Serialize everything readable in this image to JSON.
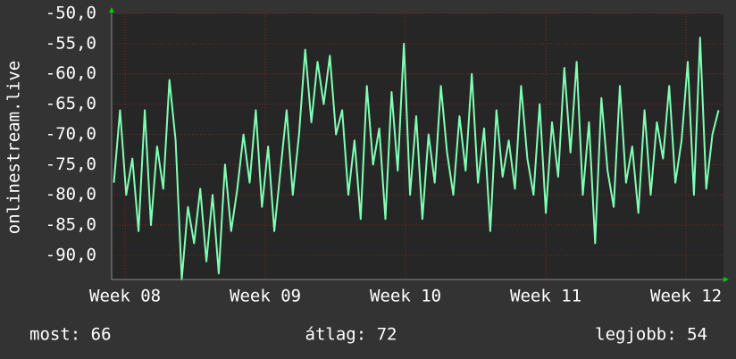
{
  "chart_data": {
    "type": "line",
    "ylabel": "onlinestream.live",
    "x": [
      7.92,
      7.964,
      8.008,
      8.052,
      8.096,
      8.14,
      8.184,
      8.228,
      8.272,
      8.316,
      8.36,
      8.404,
      8.448,
      8.492,
      8.536,
      8.58,
      8.624,
      8.668,
      8.712,
      8.756,
      8.8,
      8.844,
      8.888,
      8.932,
      8.976,
      9.02,
      9.064,
      9.108,
      9.152,
      9.196,
      9.24,
      9.284,
      9.328,
      9.372,
      9.416,
      9.46,
      9.504,
      9.548,
      9.592,
      9.636,
      9.68,
      9.724,
      9.768,
      9.812,
      9.856,
      9.9,
      9.944,
      9.988,
      10.032,
      10.076,
      10.12,
      10.164,
      10.208,
      10.252,
      10.296,
      10.34,
      10.384,
      10.428,
      10.472,
      10.516,
      10.56,
      10.604,
      10.648,
      10.692,
      10.736,
      10.78,
      10.824,
      10.868,
      10.912,
      10.956,
      11.0,
      11.044,
      11.088,
      11.132,
      11.176,
      11.22,
      11.264,
      11.308,
      11.352,
      11.396,
      11.44,
      11.484,
      11.528,
      11.572,
      11.616,
      11.66,
      11.704,
      11.748,
      11.792,
      11.836,
      11.88,
      11.924,
      11.968,
      12.012,
      12.056,
      12.1,
      12.144,
      12.188,
      12.232
    ],
    "series": [
      {
        "color": "#80ffb4",
        "values": [
          -78,
          -66,
          -80,
          -74,
          -86,
          -66,
          -85,
          -72,
          -79,
          -61,
          -71,
          -94,
          -82,
          -88,
          -79,
          -91,
          -80,
          -93,
          -75,
          -86,
          -79,
          -70,
          -78,
          -66,
          -82,
          -72,
          -86,
          -76,
          -66,
          -80,
          -70,
          -56,
          -68,
          -58,
          -65,
          -57,
          -70,
          -66,
          -80,
          -71,
          -84,
          -62,
          -75,
          -69,
          -84,
          -63,
          -76,
          -55,
          -80,
          -67,
          -84,
          -70,
          -78,
          -62,
          -73,
          -80,
          -67,
          -76,
          -60,
          -78,
          -69,
          -86,
          -66,
          -77,
          -71,
          -79,
          -62,
          -74,
          -80,
          -65,
          -83,
          -68,
          -77,
          -59,
          -73,
          -58,
          -80,
          -68,
          -88,
          -64,
          -76,
          -82,
          -62,
          -78,
          -72,
          -83,
          -66,
          -80,
          -68,
          -74,
          -62,
          -78,
          -71,
          -58,
          -80,
          -54,
          -79,
          -70,
          -66
        ]
      }
    ],
    "xlim": [
      7.904,
      12.267
    ],
    "xticks": [
      {
        "value": 8,
        "label": "Week 08"
      },
      {
        "value": 9,
        "label": "Week 09"
      },
      {
        "value": 10,
        "label": "Week 10"
      },
      {
        "value": 11,
        "label": "Week 11"
      },
      {
        "value": 12,
        "label": "Week 12"
      }
    ],
    "ylim": [
      -94,
      -50
    ],
    "yticks": [
      {
        "value": -50,
        "label": "-50,0"
      },
      {
        "value": -55,
        "label": "-55,0"
      },
      {
        "value": -60,
        "label": "-60,0"
      },
      {
        "value": -65,
        "label": "-65,0"
      },
      {
        "value": -70,
        "label": "-70,0"
      },
      {
        "value": -75,
        "label": "-75,0"
      },
      {
        "value": -80,
        "label": "-80,0"
      },
      {
        "value": -85,
        "label": "-85,0"
      },
      {
        "value": -90,
        "label": "-90,0"
      }
    ],
    "grid": true,
    "footer": {
      "current": "most: 66",
      "average": "átlag: 72",
      "best": "legjobb: 54"
    }
  }
}
